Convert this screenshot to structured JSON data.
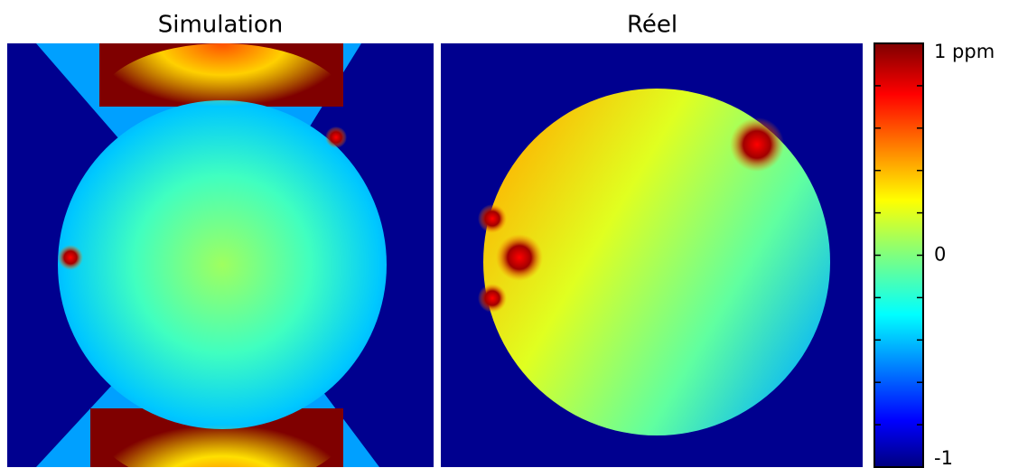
{
  "chart_data": {
    "type": "heatmap",
    "panels": [
      {
        "title": "Simulation"
      },
      {
        "title": "Réel"
      }
    ],
    "colorbar": {
      "ylim": [
        -1,
        1
      ],
      "yticks": [
        {
          "value": 1,
          "label": "1 ppm"
        },
        0,
        -1
      ],
      "minor_yticks": [
        -0.8,
        -0.6,
        -0.4,
        -0.2,
        0.2,
        0.4,
        0.6,
        0.8
      ]
    }
  }
}
